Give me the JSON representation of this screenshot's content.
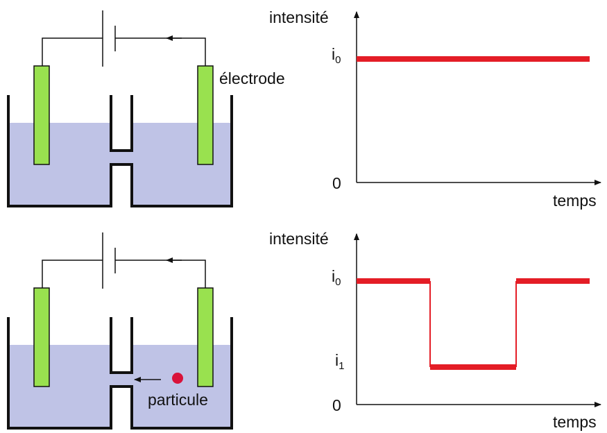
{
  "colors": {
    "liquid": "#bfc3e6",
    "electrode": "#99e14f",
    "signal": "#e41d26",
    "particle": "#d9123a",
    "ink": "#111111"
  },
  "top_panel": {
    "electrode_label": "électrode",
    "graph": {
      "y_axis_label": "intensité",
      "x_axis_label": "temps",
      "tick_i0": "i",
      "tick_i0_sub": "0",
      "tick_zero": "0"
    }
  },
  "bottom_panel": {
    "particle_label": "particule",
    "graph": {
      "y_axis_label": "intensité",
      "x_axis_label": "temps",
      "tick_i0": "i",
      "tick_i0_sub": "0",
      "tick_i1": "i",
      "tick_i1_sub": "1",
      "tick_zero": "0"
    }
  }
}
